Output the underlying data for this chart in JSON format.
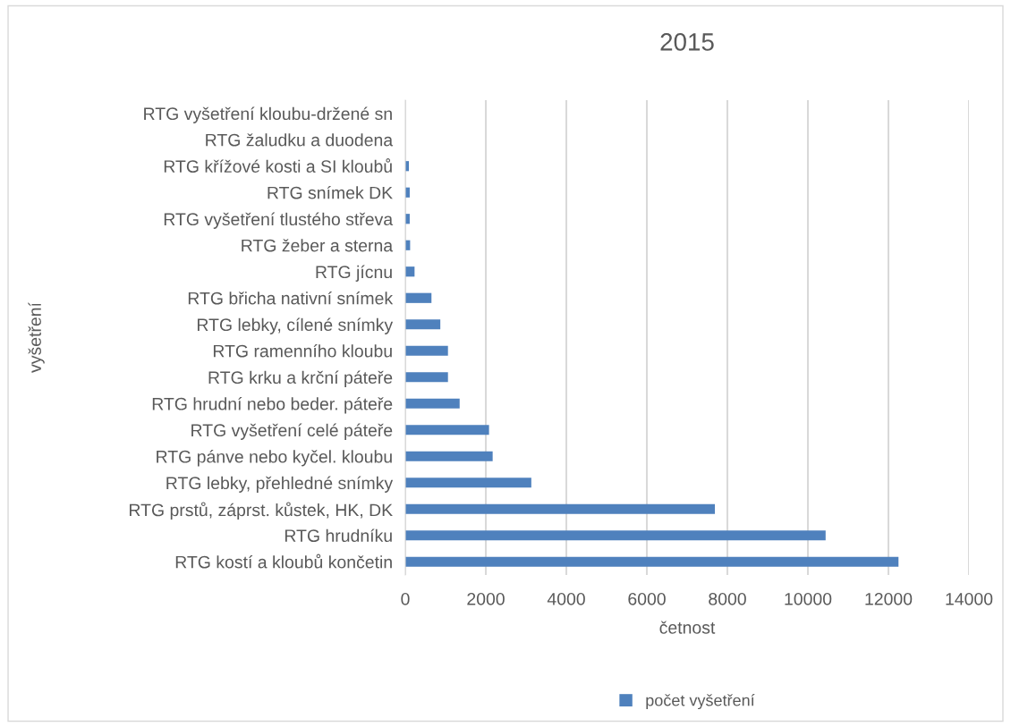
{
  "chart_data": {
    "type": "bar",
    "orientation": "horizontal",
    "title": "2015",
    "xlabel": "četnost",
    "ylabel": "vyšetření",
    "categories": [
      "RTG vyšetření kloubu-držené sn",
      "RTG žaludku a duodena",
      "RTG křížové kosti a SI kloubů",
      "RTG snímek DK",
      "RTG vyšetření tlustého střeva",
      "RTG žeber a sterna",
      "RTG jícnu",
      "RTG břicha nativní snímek",
      "RTG lebky, cílené snímky",
      "RTG ramenního kloubu",
      "RTG krku a krční páteře",
      "RTG hrudní nebo beder. páteře",
      "RTG vyšetření celé páteře",
      "RTG pánve nebo kyčel. kloubu",
      "RTG lebky, přehledné snímky",
      "RTG prstů, záprst. kůstek, HK, DK",
      "RTG hrudníku",
      "RTG kostí a kloubů končetin"
    ],
    "series": [
      {
        "name": "počet vyšetření",
        "color": "#4f81bd",
        "values": [
          0,
          0,
          90,
          110,
          110,
          120,
          230,
          650,
          870,
          1060,
          1060,
          1350,
          2080,
          2170,
          3130,
          7690,
          10440,
          12250
        ]
      }
    ],
    "xlim": [
      0,
      14000
    ],
    "xticks": [
      0,
      2000,
      4000,
      6000,
      8000,
      10000,
      12000,
      14000
    ],
    "grid": "x",
    "legend": "bottom"
  }
}
